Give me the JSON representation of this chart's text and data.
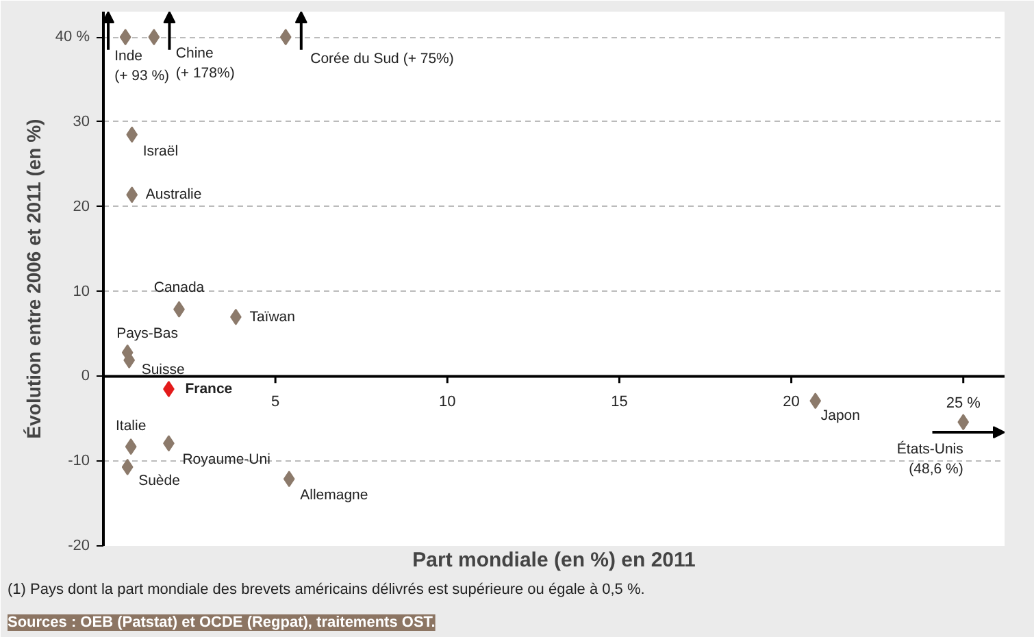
{
  "chart_data": {
    "type": "scatter",
    "marker": "diamond",
    "xlabel": "Part mondiale (en %) en 2011",
    "ylabel": "Évolution entre 2006 et 2011 (en %)",
    "x": [
      0.64,
      1.47,
      5.3,
      0.83,
      0.83,
      2.2,
      3.85,
      0.7,
      0.75,
      1.9,
      0.8,
      1.9,
      0.7,
      5.4,
      20.7,
      25
    ],
    "values": [
      40,
      40,
      40,
      28.5,
      21.4,
      7.9,
      7.0,
      2.8,
      1.9,
      -1.5,
      -8.3,
      -7.9,
      -10.7,
      -12.1,
      -2.9,
      -5.4
    ],
    "colors": [
      "#8c7a6b",
      "#8c7a6b",
      "#8c7a6b",
      "#8c7a6b",
      "#8c7a6b",
      "#8c7a6b",
      "#8c7a6b",
      "#8c7a6b",
      "#8c7a6b",
      "#e31b1b",
      "#8c7a6b",
      "#8c7a6b",
      "#8c7a6b",
      "#8c7a6b",
      "#8c7a6b",
      "#8c7a6b"
    ],
    "xlim": [
      0,
      26.2
    ],
    "ylim": [
      -20,
      43
    ],
    "xticks": [
      5,
      10,
      15,
      20,
      {
        "value": 25,
        "label": "25 %"
      }
    ],
    "yticks": [
      -20,
      -10,
      0,
      10,
      20,
      30,
      {
        "value": 40,
        "label": "40 %"
      }
    ],
    "grid": "y",
    "annotations": [
      {
        "text": "Inde\n(+ 93 %)",
        "x": 0.64,
        "y": 40
      },
      {
        "text": "Chine\n(+ 178%)",
        "x": 1.47,
        "y": 40
      },
      {
        "text": "Corée du Sud (+ 75%)",
        "x": 5.3,
        "y": 40
      },
      {
        "text": "Israël",
        "x": 0.83,
        "y": 28.5
      },
      {
        "text": "Australie",
        "x": 0.83,
        "y": 21.4
      },
      {
        "text": "Canada",
        "x": 2.2,
        "y": 7.9
      },
      {
        "text": "Taïwan",
        "x": 3.85,
        "y": 7.0
      },
      {
        "text": "Pays-Bas",
        "x": 0.7,
        "y": 2.8
      },
      {
        "text": "Suisse",
        "x": 0.75,
        "y": 1.9
      },
      {
        "text": "France",
        "x": 1.9,
        "y": -1.5
      },
      {
        "text": "Italie",
        "x": 0.8,
        "y": -8.3
      },
      {
        "text": "Royaume-Uni",
        "x": 1.9,
        "y": -7.9
      },
      {
        "text": "Suède",
        "x": 0.7,
        "y": -10.7
      },
      {
        "text": "Allemagne",
        "x": 5.4,
        "y": -12.1
      },
      {
        "text": "Japon",
        "x": 20.7,
        "y": -2.9
      },
      {
        "text": "États-Unis\n(48,6 %)",
        "x": 25,
        "y": -5.4
      },
      "(1) Pays dont la part mondiale des brevets américains délivrés est supérieure ou égale à 0,5 %.",
      "Sources : OEB (Patstat) et OCDE (Regpat), traitements OST."
    ]
  }
}
